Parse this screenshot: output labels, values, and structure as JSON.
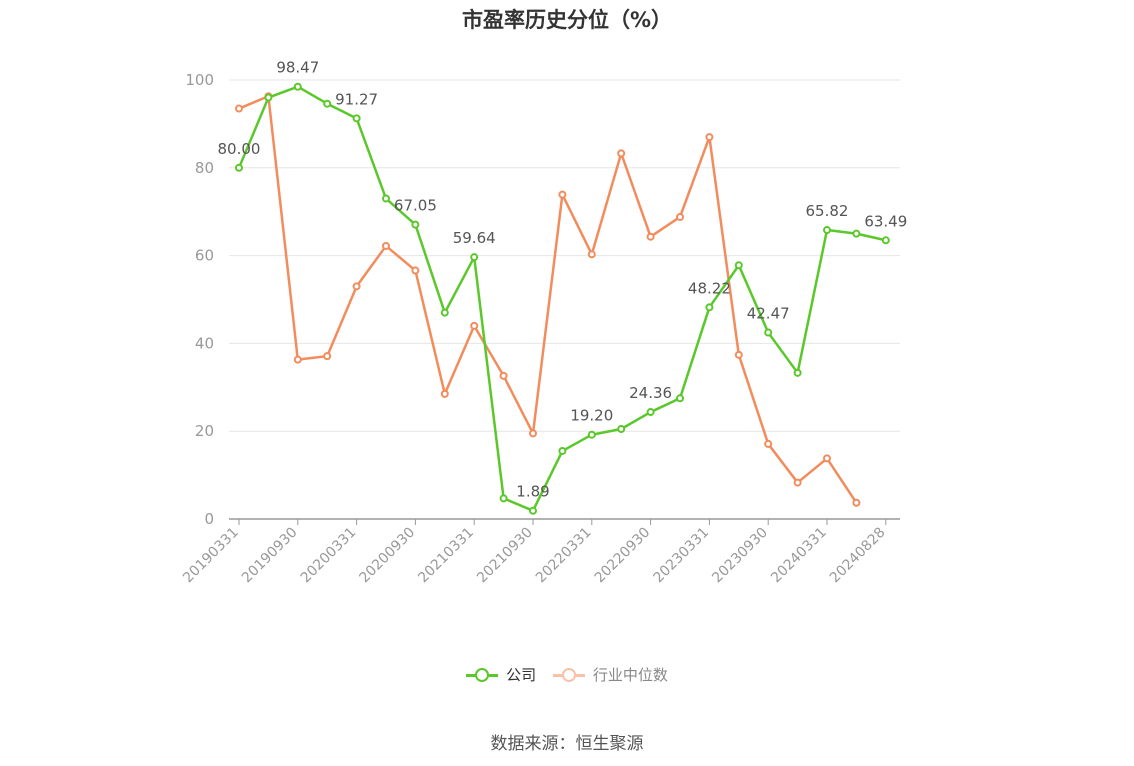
{
  "title": "市盈率历史分位（%）",
  "source": "数据来源：恒生聚源",
  "legend": {
    "company_label": "公司",
    "industry_label": "行业中位数"
  },
  "colors": {
    "company": "#5ac82b",
    "industry": "#f28c5c",
    "industry_legend": "#f8c2a8",
    "grid": "#e6e6e6",
    "axis": "#999999",
    "tick_text": "#999999",
    "label_text": "#555555"
  },
  "chart_data": {
    "type": "line",
    "title": "市盈率历史分位（%）",
    "xlabel": "",
    "ylabel": "",
    "ylim": [
      0,
      100
    ],
    "yticks": [
      0,
      20,
      40,
      60,
      80,
      100
    ],
    "grid": true,
    "legend_position": "bottom",
    "x": [
      "20190331",
      "20190630",
      "20190930",
      "20191231",
      "20200331",
      "20200630",
      "20200930",
      "20201231",
      "20210331",
      "20210630",
      "20210930",
      "20211231",
      "20220331",
      "20220630",
      "20220930",
      "20221231",
      "20230331",
      "20230630",
      "20230930",
      "20231231",
      "20240331",
      "20240630",
      "20240828"
    ],
    "x_tick_labels": [
      "20190331",
      "20190930",
      "20200331",
      "20200930",
      "20210331",
      "20210930",
      "20220331",
      "20220930",
      "20230331",
      "20230930",
      "20240331",
      "20240828"
    ],
    "x_tick_indices": [
      0,
      2,
      4,
      6,
      8,
      10,
      12,
      14,
      16,
      18,
      20,
      22
    ],
    "series": [
      {
        "name": "公司",
        "values": [
          80.0,
          96.0,
          98.47,
          94.6,
          91.27,
          73.0,
          67.05,
          47.0,
          59.64,
          4.7,
          1.89,
          15.5,
          19.2,
          20.5,
          24.36,
          27.5,
          48.22,
          57.8,
          42.47,
          33.3,
          65.82,
          65.0,
          63.49
        ],
        "labels": [
          "80.00",
          null,
          "98.47",
          null,
          "91.27",
          null,
          "67.05",
          null,
          "59.64",
          null,
          "1.89",
          null,
          "19.20",
          null,
          "24.36",
          null,
          "48.22",
          null,
          "42.47",
          null,
          "65.82",
          null,
          "63.49"
        ]
      },
      {
        "name": "行业中位数",
        "values": [
          93.5,
          96.3,
          36.3,
          37.1,
          53.0,
          62.2,
          56.6,
          28.5,
          44.0,
          32.6,
          19.5,
          73.9,
          60.3,
          83.3,
          64.3,
          68.8,
          87.0,
          37.4,
          17.1,
          8.3,
          13.8,
          3.7,
          null
        ]
      }
    ]
  }
}
